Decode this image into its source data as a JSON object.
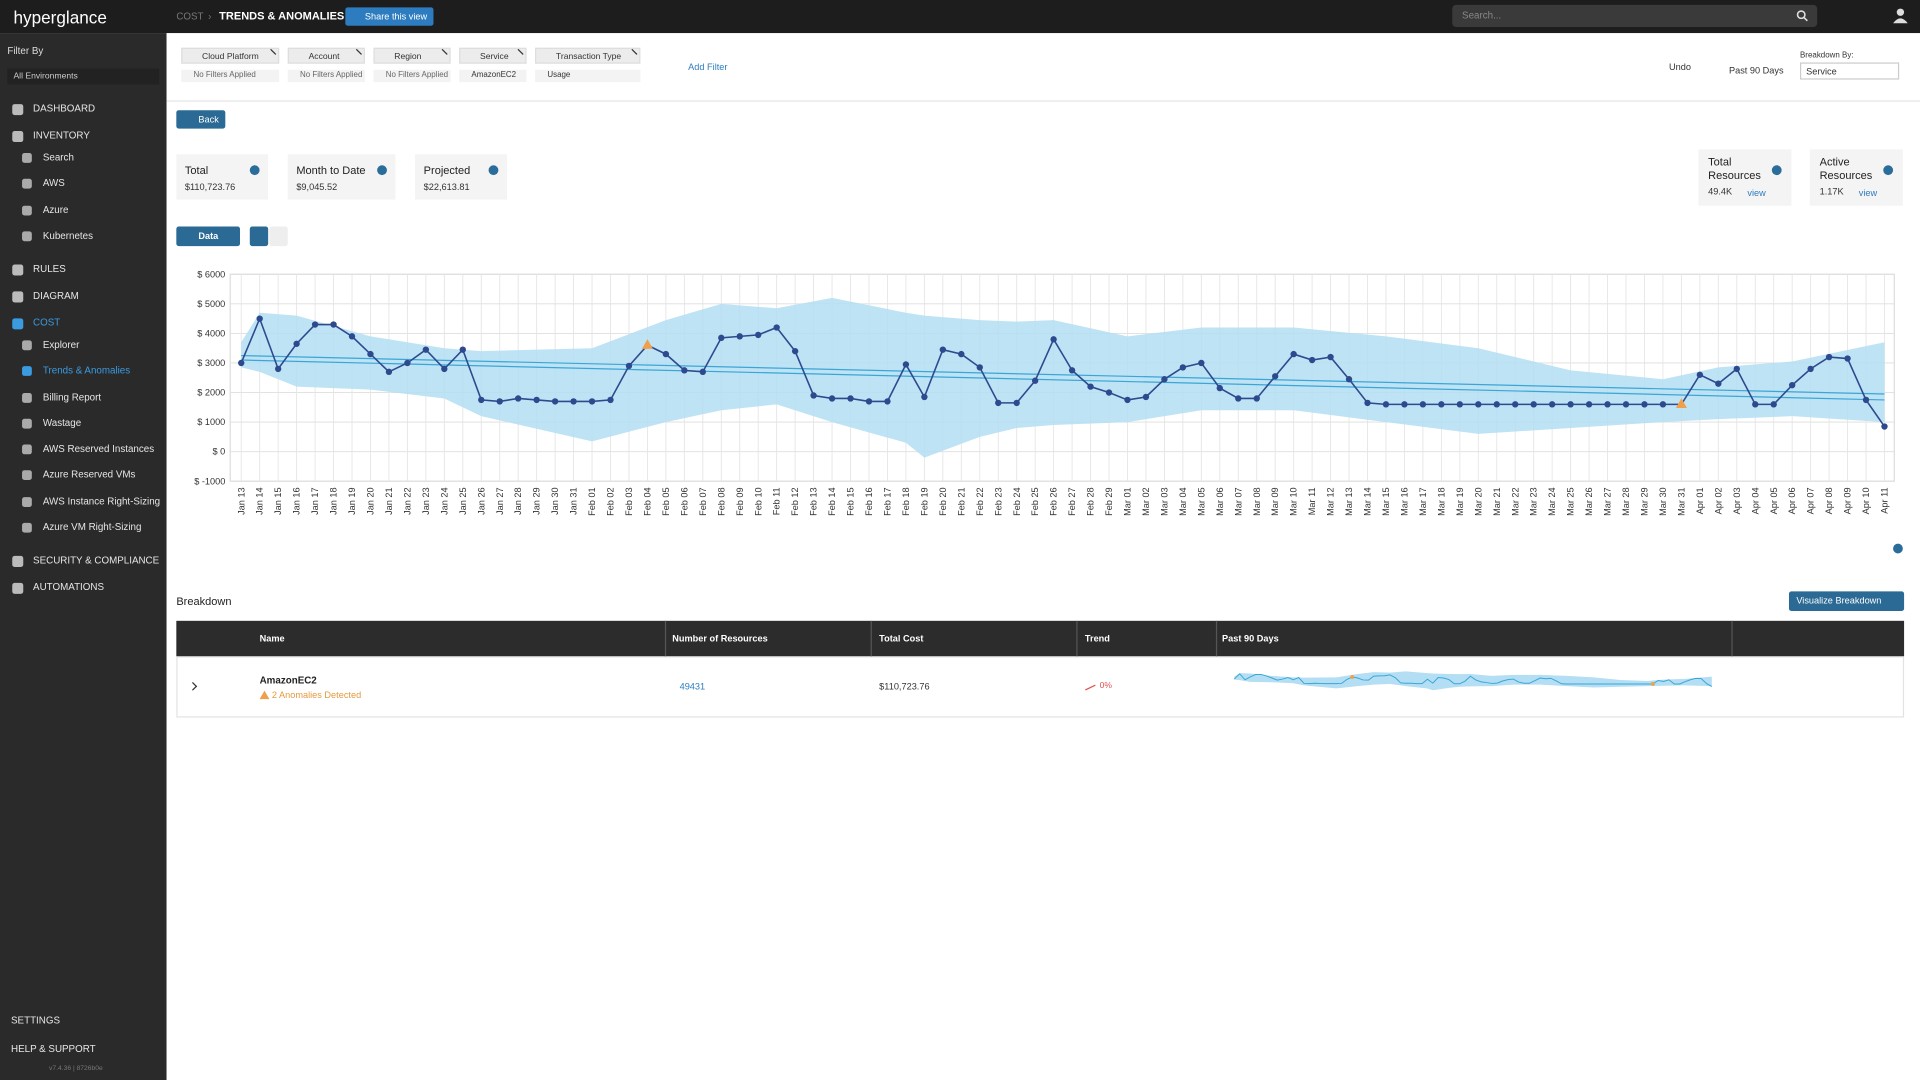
{
  "app": {
    "logo": "hyperglance",
    "breadcrumb": [
      "COST",
      "TRENDS & ANOMALIES"
    ],
    "share": "Share this view",
    "search_placeholder": "Search..."
  },
  "sidebar": {
    "filter_by": "Filter By",
    "environment": "All Environments",
    "items": [
      {
        "label": "DASHBOARD"
      },
      {
        "label": "INVENTORY",
        "children": [
          {
            "label": "Search"
          },
          {
            "label": "AWS"
          },
          {
            "label": "Azure"
          },
          {
            "label": "Kubernetes"
          }
        ]
      },
      {
        "label": "RULES"
      },
      {
        "label": "DIAGRAM"
      },
      {
        "label": "COST",
        "active": true,
        "children": [
          {
            "label": "Explorer"
          },
          {
            "label": "Trends & Anomalies",
            "active": true
          },
          {
            "label": "Billing Report"
          },
          {
            "label": "Wastage"
          },
          {
            "label": "AWS Reserved Instances"
          },
          {
            "label": "Azure Reserved VMs"
          },
          {
            "label": "AWS Instance Right-Sizing"
          },
          {
            "label": "Azure VM Right-Sizing"
          }
        ]
      },
      {
        "label": "SECURITY & COMPLIANCE"
      },
      {
        "label": "AUTOMATIONS"
      }
    ],
    "footer": [
      "SETTINGS",
      "HELP & SUPPORT"
    ],
    "version": "v7.4.36 | 8726b0e"
  },
  "filters": {
    "chips": [
      {
        "name": "Cloud Platform",
        "value": "No Filters Applied"
      },
      {
        "name": "Account",
        "value": "No Filters Applied"
      },
      {
        "name": "Region",
        "value": "No Filters Applied"
      },
      {
        "name": "Service",
        "value": "AmazonEC2"
      },
      {
        "name": "Transaction Type",
        "value": "Usage"
      }
    ],
    "add_filter": "Add Filter",
    "undo": "Undo",
    "period": "Past 90 Days",
    "breakdown_by_label": "Breakdown By:",
    "breakdown_by": "Service"
  },
  "back": "Back",
  "stats": [
    {
      "label": "Total",
      "value": "$110,723.76"
    },
    {
      "label": "Month to Date",
      "value": "$9,045.52"
    },
    {
      "label": "Projected",
      "value": "$22,613.81"
    }
  ],
  "resources": [
    {
      "label": "Total Resources",
      "value": "49.4K",
      "link": "view"
    },
    {
      "label": "Active Resources",
      "value": "1.17K",
      "link": "view"
    }
  ],
  "data_button": "Data",
  "chart_data": {
    "type": "line",
    "color": "#2e4a8e",
    "band_color": "#b3def3",
    "trend_color": "#3aa6d6",
    "anomaly_color": "#f0a04b",
    "grid": true,
    "categories": [
      "Jan 13",
      "Jan 14",
      "Jan 15",
      "Jan 16",
      "Jan 17",
      "Jan 18",
      "Jan 19",
      "Jan 20",
      "Jan 21",
      "Jan 22",
      "Jan 23",
      "Jan 24",
      "Jan 25",
      "Jan 26",
      "Jan 27",
      "Jan 28",
      "Jan 29",
      "Jan 30",
      "Jan 31",
      "Feb 01",
      "Feb 02",
      "Feb 03",
      "Feb 04",
      "Feb 05",
      "Feb 06",
      "Feb 07",
      "Feb 08",
      "Feb 09",
      "Feb 10",
      "Feb 11",
      "Feb 12",
      "Feb 13",
      "Feb 14",
      "Feb 15",
      "Feb 16",
      "Feb 17",
      "Feb 18",
      "Feb 19",
      "Feb 20",
      "Feb 21",
      "Feb 22",
      "Feb 23",
      "Feb 24",
      "Feb 25",
      "Feb 26",
      "Feb 27",
      "Feb 28",
      "Feb 29",
      "Mar 01",
      "Mar 02",
      "Mar 03",
      "Mar 04",
      "Mar 05",
      "Mar 06",
      "Mar 07",
      "Mar 08",
      "Mar 09",
      "Mar 10",
      "Mar 11",
      "Mar 12",
      "Mar 13",
      "Mar 14",
      "Mar 15",
      "Mar 16",
      "Mar 17",
      "Mar 18",
      "Mar 19",
      "Mar 20",
      "Mar 21",
      "Mar 22",
      "Mar 23",
      "Mar 24",
      "Mar 25",
      "Mar 26",
      "Mar 27",
      "Mar 28",
      "Mar 29",
      "Mar 30",
      "Mar 31",
      "Apr 01",
      "Apr 02",
      "Apr 03",
      "Apr 04",
      "Apr 05",
      "Apr 06",
      "Apr 07",
      "Apr 08",
      "Apr 09",
      "Apr 10",
      "Apr 11"
    ],
    "values": [
      3000,
      4500,
      2800,
      3650,
      4300,
      4300,
      3900,
      3300,
      2700,
      3000,
      3450,
      2800,
      3450,
      1750,
      1700,
      1800,
      1750,
      1700,
      1700,
      1700,
      1750,
      2900,
      3600,
      3300,
      2750,
      2700,
      3850,
      3900,
      3950,
      4200,
      3400,
      1900,
      1800,
      1800,
      1700,
      1700,
      2950,
      1850,
      3450,
      3300,
      2850,
      1650,
      1650,
      2400,
      3800,
      2750,
      2200,
      2000,
      1750,
      1850,
      2450,
      2850,
      3000,
      2150,
      1800,
      1800,
      2550,
      3300,
      3100,
      3200,
      2450,
      1650,
      1600,
      1600,
      1600,
      1600,
      1600,
      1600,
      1600,
      1600,
      1600,
      1600,
      1600,
      1600,
      1600,
      1600,
      1600,
      1600,
      1600,
      2600,
      2300,
      2800,
      1600,
      1600,
      2250,
      2800,
      3200,
      3150,
      1750,
      850
    ],
    "band": {
      "x": [
        "Jan 13",
        "Jan 14",
        "Jan 16",
        "Jan 20",
        "Jan 24",
        "Jan 26",
        "Feb 01",
        "Feb 05",
        "Feb 08",
        "Feb 11",
        "Feb 14",
        "Feb 18",
        "Feb 19",
        "Feb 22",
        "Feb 24",
        "Feb 26",
        "Mar 01",
        "Mar 05",
        "Mar 10",
        "Mar 15",
        "Mar 20",
        "Mar 25",
        "Mar 30",
        "Apr 02",
        "Apr 06",
        "Apr 11"
      ],
      "upper": [
        3700,
        4700,
        4600,
        3900,
        3500,
        3400,
        3500,
        4450,
        5000,
        4850,
        5200,
        4700,
        4600,
        4450,
        4400,
        4450,
        3900,
        4200,
        4200,
        3900,
        3500,
        2750,
        2450,
        2850,
        3050,
        3700
      ],
      "lower": [
        2850,
        2700,
        2200,
        2100,
        1800,
        1200,
        350,
        1000,
        1400,
        1600,
        1000,
        300,
        -200,
        500,
        800,
        900,
        1000,
        1400,
        1400,
        1000,
        600,
        800,
        1000,
        1100,
        1200,
        1000
      ]
    },
    "trend_lines": [
      {
        "start": 3250,
        "end": 1950
      },
      {
        "start": 3100,
        "end": 1750
      }
    ],
    "anomalies": [
      "Feb 04",
      "Mar 31"
    ],
    "ylim": [
      -1000,
      6000
    ],
    "yticks": [
      {
        "value": -1000,
        "label": "$ -1000"
      },
      {
        "value": 0,
        "label": "$ 0"
      },
      {
        "value": 1000,
        "label": "$ 1000"
      },
      {
        "value": 2000,
        "label": "$ 2000"
      },
      {
        "value": 3000,
        "label": "$ 3000"
      },
      {
        "value": 4000,
        "label": "$ 4000"
      },
      {
        "value": 5000,
        "label": "$ 5000"
      },
      {
        "value": 6000,
        "label": "$ 6000"
      }
    ]
  },
  "breakdown": {
    "title": "Breakdown",
    "visualize": "Visualize Breakdown",
    "columns": [
      "Name",
      "Number of Resources",
      "Total Cost",
      "Trend",
      "Past 90 Days"
    ],
    "rows": [
      {
        "name": "AmazonEC2",
        "anomalies": "2 Anomalies Detected",
        "resources": 49431,
        "total_cost": "$110,723.76",
        "trend": "0%"
      }
    ]
  }
}
